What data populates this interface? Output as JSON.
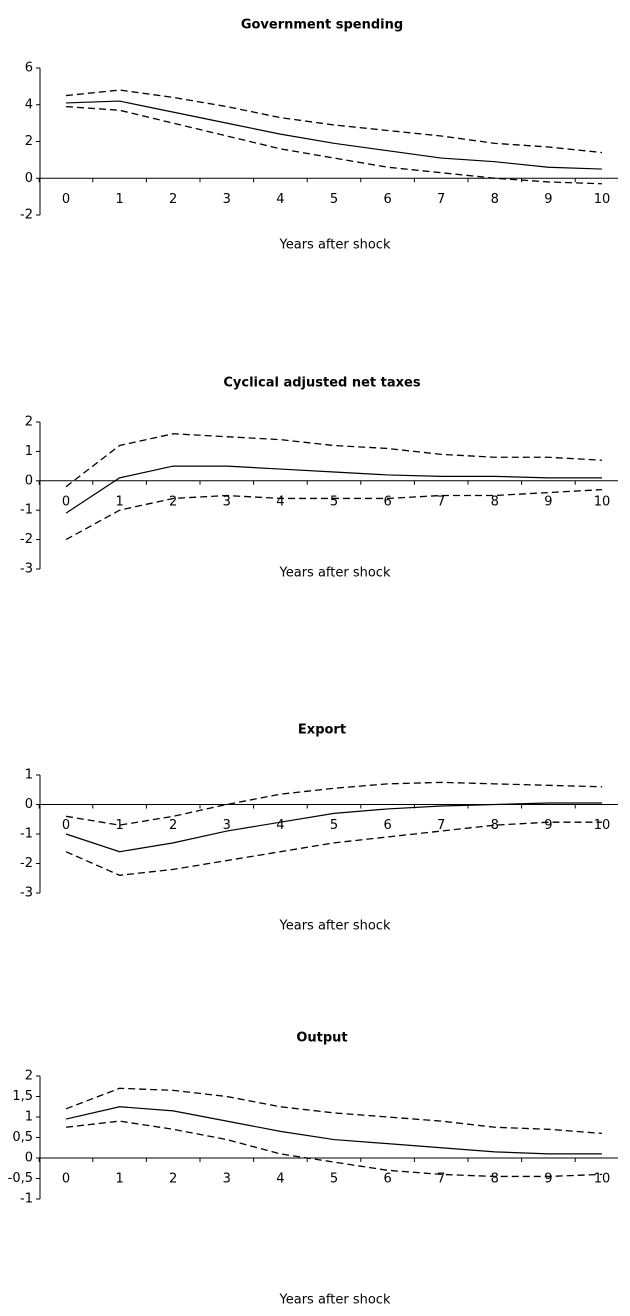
{
  "chart_data": [
    {
      "type": "line",
      "title": "Government spending",
      "xlabel": "Years after shock",
      "categories": [
        "0",
        "1",
        "2",
        "3",
        "4",
        "5",
        "6",
        "7",
        "8",
        "9",
        "10"
      ],
      "series": [
        {
          "color": "#000000",
          "style": "solid",
          "values": [
            4.1,
            4.2,
            3.6,
            3.0,
            2.4,
            1.9,
            1.5,
            1.1,
            0.9,
            0.6,
            0.5
          ]
        },
        {
          "color": "#000000",
          "style": "dashed",
          "values": [
            4.5,
            4.8,
            4.4,
            3.9,
            3.3,
            2.9,
            2.6,
            2.3,
            1.9,
            1.7,
            1.4
          ]
        },
        {
          "color": "#000000",
          "style": "dashed",
          "values": [
            3.9,
            3.7,
            3.0,
            2.3,
            1.6,
            1.1,
            0.6,
            0.3,
            0.0,
            -0.2,
            -0.3
          ]
        }
      ],
      "ylim": [
        -2,
        6
      ],
      "yticks": [
        -2,
        0,
        2,
        4,
        6
      ]
    },
    {
      "type": "line",
      "title": "Cyclical adjusted net taxes",
      "xlabel": "Years after shock",
      "categories": [
        "0",
        "1",
        "2",
        "3",
        "4",
        "5",
        "6",
        "7",
        "8",
        "9",
        "10"
      ],
      "series": [
        {
          "color": "#000000",
          "style": "solid",
          "values": [
            -1.1,
            0.1,
            0.5,
            0.5,
            0.4,
            0.3,
            0.2,
            0.15,
            0.15,
            0.1,
            0.1
          ]
        },
        {
          "color": "#000000",
          "style": "dashed",
          "values": [
            -0.2,
            1.2,
            1.6,
            1.5,
            1.4,
            1.2,
            1.1,
            0.9,
            0.8,
            0.8,
            0.7
          ]
        },
        {
          "color": "#000000",
          "style": "dashed",
          "values": [
            -2.0,
            -1.0,
            -0.6,
            -0.5,
            -0.6,
            -0.6,
            -0.6,
            -0.5,
            -0.5,
            -0.4,
            -0.3
          ]
        }
      ],
      "ylim": [
        -3,
        2
      ],
      "yticks": [
        -3,
        -2,
        -1,
        0,
        1,
        2
      ]
    },
    {
      "type": "line",
      "title": "Export",
      "xlabel": "Years after shock",
      "categories": [
        "0",
        "1",
        "2",
        "3",
        "4",
        "5",
        "6",
        "7",
        "8",
        "9",
        "10"
      ],
      "series": [
        {
          "color": "#000000",
          "style": "solid",
          "values": [
            -1.0,
            -1.6,
            -1.3,
            -0.9,
            -0.6,
            -0.3,
            -0.15,
            -0.05,
            0.0,
            0.05,
            0.05
          ]
        },
        {
          "color": "#000000",
          "style": "dashed",
          "values": [
            -0.4,
            -0.7,
            -0.4,
            0.0,
            0.35,
            0.55,
            0.7,
            0.75,
            0.7,
            0.65,
            0.6
          ]
        },
        {
          "color": "#000000",
          "style": "dashed",
          "values": [
            -1.6,
            -2.4,
            -2.2,
            -1.9,
            -1.6,
            -1.3,
            -1.1,
            -0.9,
            -0.7,
            -0.6,
            -0.6
          ]
        }
      ],
      "ylim": [
        -3,
        1
      ],
      "yticks": [
        -3,
        -2,
        -1,
        0,
        1
      ]
    },
    {
      "type": "line",
      "title": "Output",
      "xlabel": "Years after shock",
      "categories": [
        "0",
        "1",
        "2",
        "3",
        "4",
        "5",
        "6",
        "7",
        "8",
        "9",
        "10"
      ],
      "series": [
        {
          "color": "#000000",
          "style": "solid",
          "values": [
            0.95,
            1.25,
            1.15,
            0.9,
            0.65,
            0.45,
            0.35,
            0.25,
            0.15,
            0.1,
            0.1
          ]
        },
        {
          "color": "#000000",
          "style": "dashed",
          "values": [
            1.2,
            1.7,
            1.65,
            1.5,
            1.25,
            1.1,
            1.0,
            0.9,
            0.75,
            0.7,
            0.6
          ]
        },
        {
          "color": "#000000",
          "style": "dashed",
          "values": [
            0.75,
            0.9,
            0.7,
            0.45,
            0.1,
            -0.1,
            -0.3,
            -0.4,
            -0.45,
            -0.45,
            -0.4
          ]
        }
      ],
      "ylim": [
        -1,
        2
      ],
      "yticks": [
        -1,
        {
          "value": -0.5,
          "label": "-0,5"
        },
        0,
        {
          "value": 0.5,
          "label": "0,5"
        },
        1,
        {
          "value": 1.5,
          "label": "1,5"
        },
        2
      ]
    }
  ]
}
